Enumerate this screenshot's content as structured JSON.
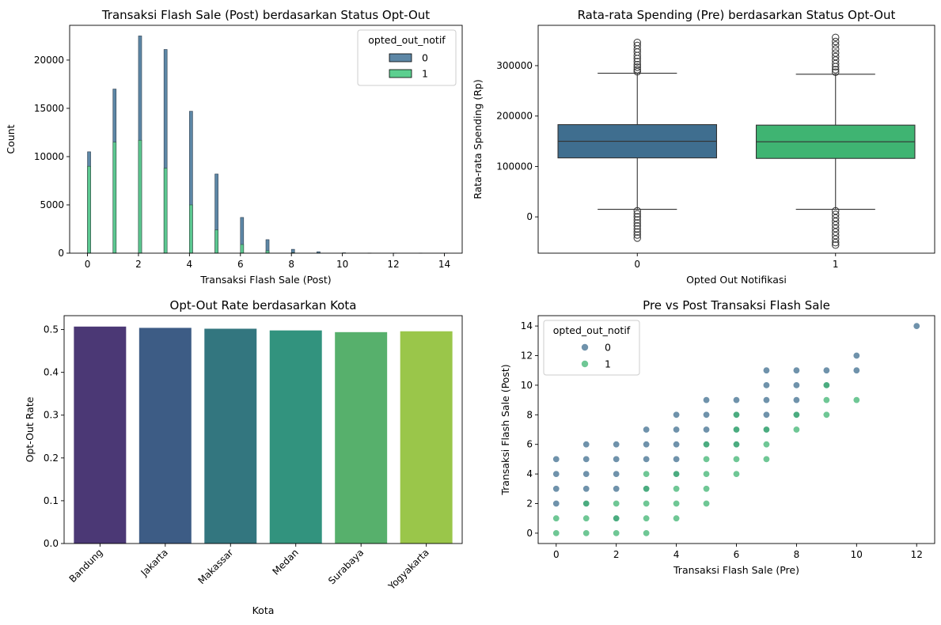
{
  "figure": {
    "colors": {
      "c0": "#3f6e8f",
      "c1": "#3fb472",
      "c0_hist": "#5d87a6",
      "c1_hist": "#5ccf8f",
      "axis": "#000000"
    }
  },
  "chart_data": [
    {
      "id": "hist",
      "type": "histogram",
      "title": "Transaksi Flash Sale (Post) berdasarkan Status Opt-Out",
      "xlabel": "Transaksi Flash Sale (Post)",
      "ylabel": "Count",
      "xlim": [
        -0.7,
        14.7
      ],
      "ylim": [
        0,
        23600
      ],
      "xticks": [
        0,
        2,
        4,
        6,
        8,
        10,
        12,
        14
      ],
      "yticks": [
        0,
        5000,
        10000,
        15000,
        20000
      ],
      "legend": {
        "title": "opted_out_notif",
        "entries": [
          "0",
          "1"
        ],
        "placement": "upper right"
      },
      "x": [
        0,
        1,
        2,
        3,
        4,
        5,
        6,
        7,
        8,
        9,
        10,
        11,
        12,
        13,
        14
      ],
      "series": [
        {
          "name": "0",
          "values": [
            10500,
            17000,
            22500,
            21100,
            14700,
            8200,
            3700,
            1400,
            400,
            150,
            40,
            15,
            5,
            2,
            1
          ]
        },
        {
          "name": "1",
          "values": [
            9000,
            11500,
            11700,
            8800,
            5000,
            2400,
            900,
            250,
            60,
            15,
            3,
            1,
            0,
            0,
            0
          ]
        }
      ]
    },
    {
      "id": "box",
      "type": "box",
      "title": "Rata-rata Spending (Pre) berdasarkan Status Opt-Out",
      "xlabel": "Opted Out Notifikasi",
      "ylabel": "Rata-rata Spending (Rp)",
      "ylim": [
        -72000,
        380000
      ],
      "yticks": [
        0,
        100000,
        200000,
        300000
      ],
      "categories": [
        "0",
        "1"
      ],
      "boxes": [
        {
          "name": "0",
          "q1": 117000,
          "median": 150000,
          "q3": 183000,
          "whislo": 15000,
          "whishi": 285000,
          "fliers_high": [
            288000,
            292000,
            297000,
            302000,
            308000,
            314000,
            320000,
            327000,
            333000,
            340000,
            346000
          ],
          "fliers_low": [
            12000,
            6000,
            0,
            -6000,
            -12000,
            -18000,
            -24000,
            -30000,
            -36000,
            -42000
          ]
        },
        {
          "name": "1",
          "q1": 116000,
          "median": 149000,
          "q3": 182000,
          "whislo": 15000,
          "whishi": 283000,
          "fliers_high": [
            287000,
            292000,
            298000,
            304000,
            311000,
            318000,
            325000,
            333000,
            341000,
            348000,
            356000
          ],
          "fliers_low": [
            12000,
            5000,
            -2000,
            -9000,
            -16000,
            -23000,
            -30000,
            -37000,
            -44000,
            -51000,
            -56000
          ]
        }
      ]
    },
    {
      "id": "bar",
      "type": "bar",
      "title": "Opt-Out Rate berdasarkan Kota",
      "xlabel": "Kota",
      "ylabel": "Opt-Out Rate",
      "ylim": [
        0,
        0.5325
      ],
      "yticks": [
        0.0,
        0.1,
        0.2,
        0.3,
        0.4,
        0.5
      ],
      "categories": [
        "Bandung",
        "Jakarta",
        "Makassar",
        "Medan",
        "Surabaya",
        "Yogyakarta"
      ],
      "values": [
        0.507,
        0.504,
        0.502,
        0.498,
        0.494,
        0.496
      ],
      "colors": [
        "#4b3875",
        "#3d5c85",
        "#33767f",
        "#32937e",
        "#57b06c",
        "#9ac64a"
      ]
    },
    {
      "id": "scatter",
      "type": "scatter",
      "title": "Pre vs Post Transaksi Flash Sale",
      "xlabel": "Transaksi Flash Sale (Pre)",
      "ylabel": "Transaksi Flash Sale (Post)",
      "xlim": [
        -0.6,
        12.6
      ],
      "ylim": [
        -0.7,
        14.7
      ],
      "xticks": [
        0,
        2,
        4,
        6,
        8,
        10,
        12
      ],
      "yticks": [
        0,
        2,
        4,
        6,
        8,
        10,
        12,
        14
      ],
      "legend": {
        "title": "opted_out_notif",
        "entries": [
          "0",
          "1"
        ],
        "placement": "upper left"
      },
      "series": [
        {
          "name": "0",
          "points": [
            [
              0,
              2
            ],
            [
              0,
              3
            ],
            [
              0,
              4
            ],
            [
              0,
              5
            ],
            [
              1,
              2
            ],
            [
              1,
              3
            ],
            [
              1,
              4
            ],
            [
              1,
              5
            ],
            [
              1,
              6
            ],
            [
              2,
              1
            ],
            [
              2,
              3
            ],
            [
              2,
              4
            ],
            [
              2,
              5
            ],
            [
              2,
              6
            ],
            [
              3,
              3
            ],
            [
              3,
              5
            ],
            [
              3,
              6
            ],
            [
              3,
              7
            ],
            [
              4,
              4
            ],
            [
              4,
              5
            ],
            [
              4,
              6
            ],
            [
              4,
              7
            ],
            [
              4,
              8
            ],
            [
              5,
              6
            ],
            [
              5,
              7
            ],
            [
              5,
              8
            ],
            [
              5,
              9
            ],
            [
              6,
              6
            ],
            [
              6,
              7
            ],
            [
              6,
              8
            ],
            [
              6,
              9
            ],
            [
              7,
              7
            ],
            [
              7,
              8
            ],
            [
              7,
              9
            ],
            [
              7,
              10
            ],
            [
              7,
              11
            ],
            [
              8,
              8
            ],
            [
              8,
              9
            ],
            [
              8,
              10
            ],
            [
              8,
              11
            ],
            [
              9,
              10
            ],
            [
              9,
              11
            ],
            [
              10,
              11
            ],
            [
              10,
              12
            ],
            [
              12,
              14
            ]
          ]
        },
        {
          "name": "1",
          "points": [
            [
              0,
              0
            ],
            [
              0,
              1
            ],
            [
              1,
              0
            ],
            [
              1,
              1
            ],
            [
              1,
              2
            ],
            [
              2,
              0
            ],
            [
              2,
              1
            ],
            [
              2,
              2
            ],
            [
              3,
              0
            ],
            [
              3,
              1
            ],
            [
              3,
              2
            ],
            [
              3,
              3
            ],
            [
              3,
              4
            ],
            [
              4,
              1
            ],
            [
              4,
              2
            ],
            [
              4,
              3
            ],
            [
              4,
              4
            ],
            [
              5,
              2
            ],
            [
              5,
              3
            ],
            [
              5,
              4
            ],
            [
              5,
              5
            ],
            [
              5,
              6
            ],
            [
              6,
              4
            ],
            [
              6,
              5
            ],
            [
              6,
              6
            ],
            [
              6,
              7
            ],
            [
              6,
              8
            ],
            [
              7,
              5
            ],
            [
              7,
              6
            ],
            [
              7,
              7
            ],
            [
              8,
              7
            ],
            [
              8,
              8
            ],
            [
              9,
              8
            ],
            [
              9,
              9
            ],
            [
              9,
              10
            ],
            [
              10,
              9
            ]
          ]
        }
      ]
    }
  ]
}
